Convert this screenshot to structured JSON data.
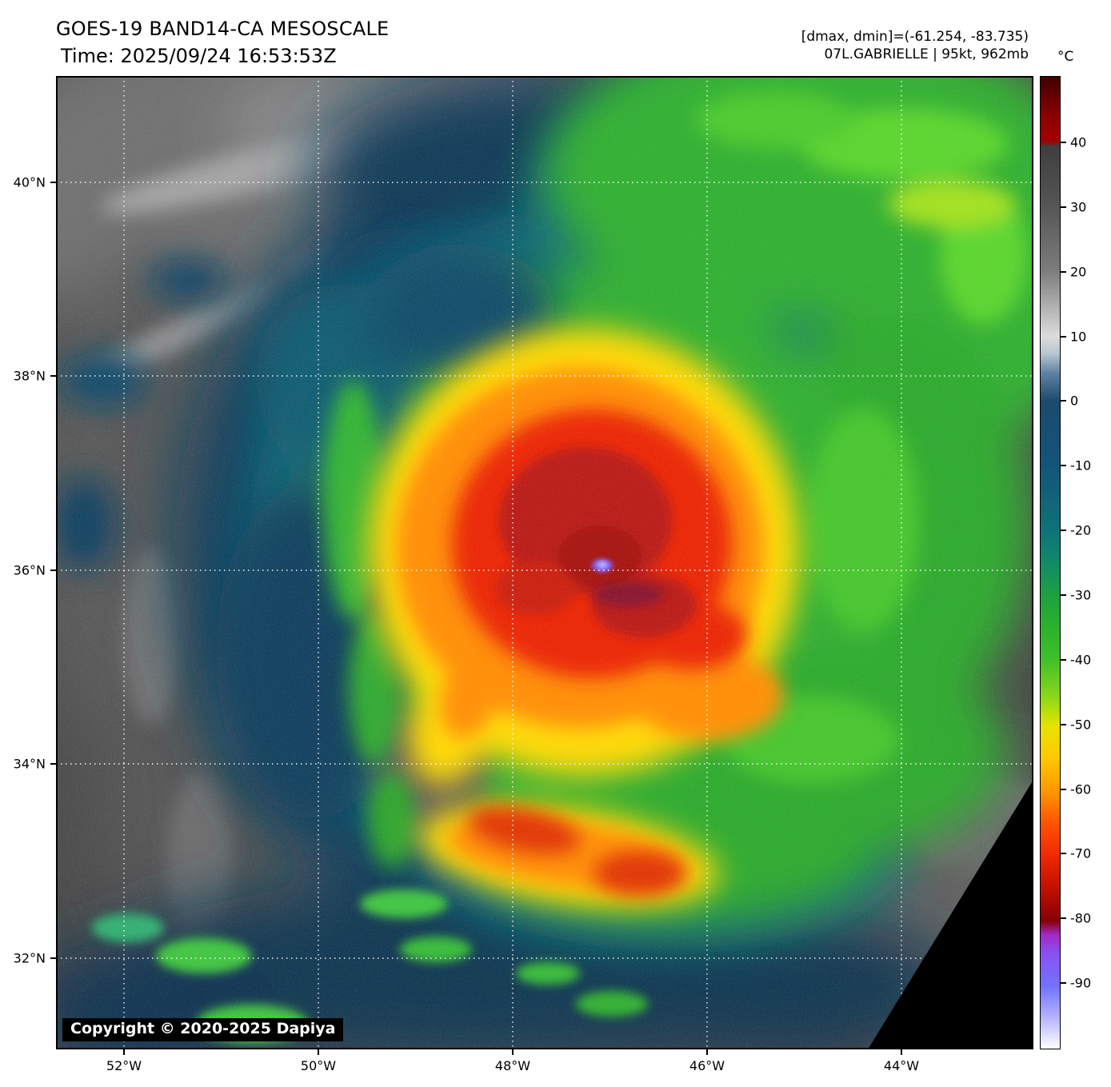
{
  "header": {
    "title": "GOES-19 BAND14-CA MESOSCALE",
    "time": "Time: 2025/09/24 16:53:53Z",
    "range_readout": "[dmax, dmin]=(-61.254, -83.735)",
    "storm_readout": "07L.GABRIELLE | 95kt, 962mb"
  },
  "map": {
    "copyright": "Copyright © 2020-2025 Dapiya",
    "lat_labels": [
      "40°N",
      "38°N",
      "36°N",
      "34°N",
      "32°N"
    ],
    "lon_labels": [
      "52°W",
      "50°W",
      "48°W",
      "46°W",
      "44°W"
    ]
  },
  "colorbar": {
    "unit": "°C",
    "ticks": [
      "40",
      "30",
      "20",
      "10",
      "0",
      "-10",
      "-20",
      "-30",
      "-40",
      "-50",
      "-60",
      "-70",
      "-80",
      "-90"
    ]
  }
}
